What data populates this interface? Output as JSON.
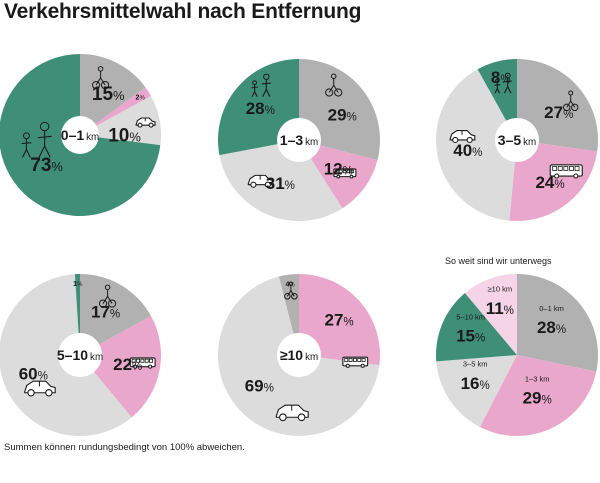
{
  "title": "Verkehrsmittelwahl nach Entfernung",
  "footnote": "Summen können rundungsbedingt von 100% abweichen.",
  "summary_title": "So weit sind wir unterwegs",
  "colors": {
    "zu_fuss": "#3f8f76",
    "fahrrad": "#b1b1b1",
    "oepnv": "#eaa7cc",
    "auto": "#dcdcdc",
    "dist_0_1": "#b1b1b1",
    "dist_1_3": "#eaa7cc",
    "dist_3_5": "#dcdcdc",
    "dist_5_10": "#3f8f76",
    "dist_10_plus": "#f4d4e6"
  },
  "icons": {
    "fahrrad": "cyclist-icon",
    "oepnv": "bus-icon",
    "auto": "car-icon",
    "zu_fuss": "pedestrians-icon"
  },
  "chart_data": [
    {
      "type": "pie",
      "center_label": "0–1",
      "center_unit": "km",
      "slices": [
        {
          "mode": "fahrrad",
          "value": 15,
          "label": "15"
        },
        {
          "mode": "oepnv",
          "value": 2,
          "label": "2"
        },
        {
          "mode": "auto",
          "value": 10,
          "label": "10"
        },
        {
          "mode": "zu_fuss",
          "value": 73,
          "label": "73"
        }
      ]
    },
    {
      "type": "pie",
      "center_label": "1–3",
      "center_unit": "km",
      "slices": [
        {
          "mode": "fahrrad",
          "value": 29,
          "label": "29"
        },
        {
          "mode": "oepnv",
          "value": 12,
          "label": "12"
        },
        {
          "mode": "auto",
          "value": 31,
          "label": "31"
        },
        {
          "mode": "zu_fuss",
          "value": 28,
          "label": "28"
        }
      ]
    },
    {
      "type": "pie",
      "center_label": "3–5",
      "center_unit": "km",
      "slices": [
        {
          "mode": "fahrrad",
          "value": 27,
          "label": "27"
        },
        {
          "mode": "oepnv",
          "value": 24,
          "label": "24"
        },
        {
          "mode": "auto",
          "value": 40,
          "label": "40"
        },
        {
          "mode": "zu_fuss",
          "value": 8,
          "label": "8"
        }
      ]
    },
    {
      "type": "pie",
      "center_label": "5–10",
      "center_unit": "km",
      "slices": [
        {
          "mode": "fahrrad",
          "value": 17,
          "label": "17"
        },
        {
          "mode": "oepnv",
          "value": 22,
          "label": "22"
        },
        {
          "mode": "auto",
          "value": 60,
          "label": "60"
        },
        {
          "mode": "zu_fuss",
          "value": 1,
          "label": "1"
        }
      ]
    },
    {
      "type": "pie",
      "center_label": "≥10",
      "center_unit": "km",
      "slices": [
        {
          "mode": "oepnv",
          "value": 27,
          "label": "27"
        },
        {
          "mode": "auto",
          "value": 69,
          "label": "69"
        },
        {
          "mode": "fahrrad",
          "value": 4,
          "label": "4"
        }
      ]
    },
    {
      "type": "pie",
      "title": "So weit sind wir unterwegs",
      "slices": [
        {
          "mode": "dist_0_1",
          "category": "0–1 km",
          "value": 28,
          "label": "28"
        },
        {
          "mode": "dist_1_3",
          "category": "1–3 km",
          "value": 29,
          "label": "29"
        },
        {
          "mode": "dist_3_5",
          "category": "3–5 km",
          "value": 16,
          "label": "16"
        },
        {
          "mode": "dist_5_10",
          "category": "5–10 km",
          "value": 15,
          "label": "15"
        },
        {
          "mode": "dist_10_plus",
          "category": "≥10 km",
          "value": 11,
          "label": "11"
        }
      ]
    }
  ],
  "percent_sign": "%"
}
